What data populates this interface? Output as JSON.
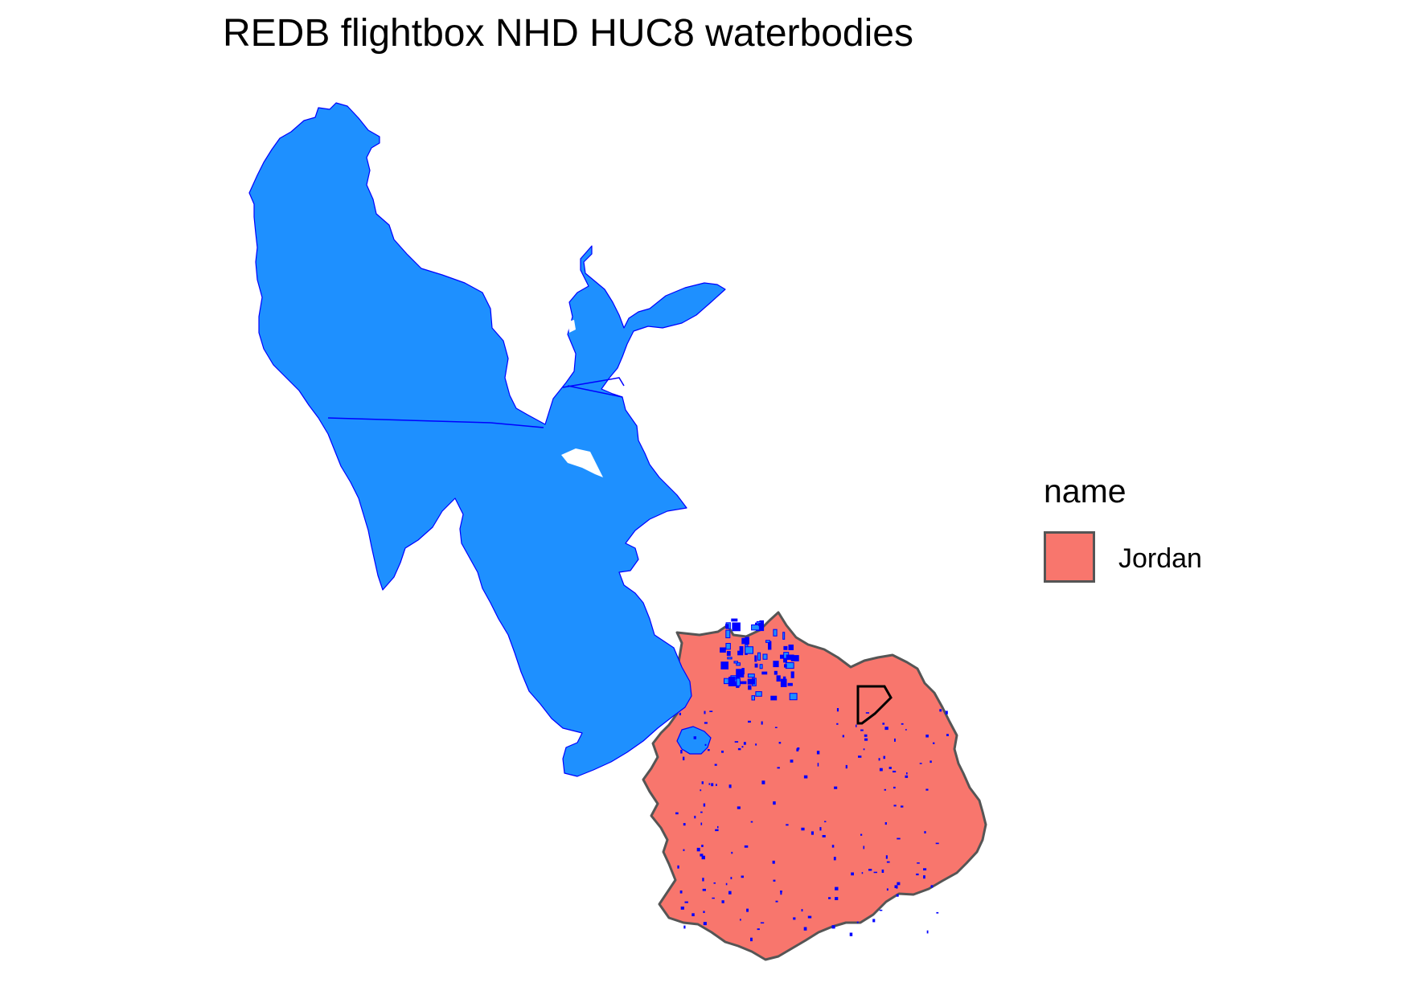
{
  "title": "REDB flightbox NHD HUC8 waterbodies",
  "legend": {
    "title": "name",
    "items": [
      {
        "label": "Jordan",
        "color": "#f8766d",
        "border_color": "#555555"
      }
    ]
  },
  "colors": {
    "background": "#ffffff",
    "waterbody_fill": "#1e90ff",
    "waterbody_outline": "#0000ff",
    "huc8_fill": "#f8766d",
    "huc8_outline": "#555555",
    "flightbox_outline": "#000000"
  },
  "map_layers": [
    {
      "layer": "HUC8 boundary",
      "name": "Jordan",
      "fill": "#f8766d"
    },
    {
      "layer": "NHD waterbodies",
      "fill": "#1e90ff"
    },
    {
      "layer": "REDB flightbox",
      "fill": "none"
    }
  ]
}
